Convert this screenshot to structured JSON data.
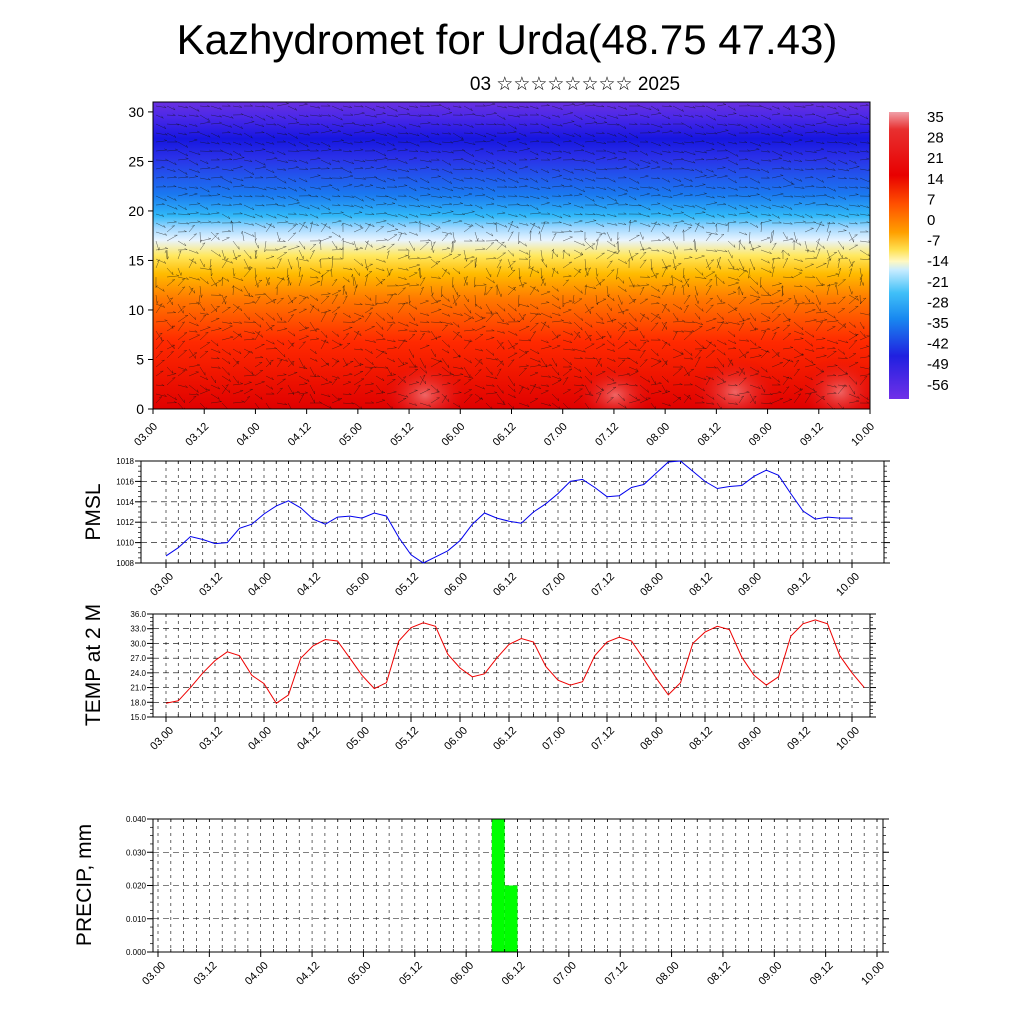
{
  "title": "Kazhydromet for Urda(48.75 47.43)",
  "subtitle": "03 ☆☆☆☆☆☆☆☆ 2025",
  "chart_data": [
    {
      "type": "heatmap",
      "title": "",
      "x_ticks": [
        "03.00",
        "03.12",
        "04.00",
        "04.12",
        "05.00",
        "05.12",
        "06.00",
        "06.12",
        "07.00",
        "07.12",
        "08.00",
        "08.12",
        "09.00",
        "09.12",
        "10.00"
      ],
      "y_ticks": [
        0,
        5,
        10,
        15,
        20,
        25,
        30
      ],
      "ylim": [
        0,
        31
      ],
      "colorbar_labels": [
        "35",
        "28",
        "21",
        "14",
        "7",
        "0",
        "-7",
        "-14",
        "-21",
        "-28",
        "-35",
        "-42",
        "-49",
        "-56"
      ],
      "colorbar_range": [
        -60,
        40
      ],
      "overlay": "wind vectors"
    },
    {
      "type": "line",
      "ylabel": "PMSL",
      "color": "#0000ee",
      "x_ticks": [
        "03.00",
        "03.12",
        "04.00",
        "04.12",
        "05.00",
        "05.12",
        "06.00",
        "06.12",
        "07.00",
        "07.12",
        "08.00",
        "08.12",
        "09.00",
        "09.12",
        "10.00"
      ],
      "y_ticks": [
        "1008",
        "1010",
        "1012",
        "1014",
        "1016",
        "1018"
      ],
      "ylim": [
        1008,
        1018
      ],
      "x_step_hours": 3,
      "values": [
        1008.7,
        1009.5,
        1010.6,
        1010.3,
        1009.9,
        1010.0,
        1011.4,
        1011.8,
        1012.8,
        1013.6,
        1014.1,
        1013.4,
        1012.3,
        1011.8,
        1012.5,
        1012.6,
        1012.4,
        1012.9,
        1012.6,
        1010.5,
        1008.8,
        1008.0,
        1008.6,
        1009.2,
        1010.2,
        1011.8,
        1012.9,
        1012.4,
        1012.1,
        1011.9,
        1013.0,
        1013.8,
        1014.8,
        1016.0,
        1016.2,
        1015.4,
        1014.5,
        1014.6,
        1015.4,
        1015.7,
        1016.8,
        1017.9,
        1018.0,
        1017.0,
        1016.0,
        1015.3,
        1015.5,
        1015.6,
        1016.5,
        1017.1,
        1016.6,
        1014.8,
        1013.1,
        1012.3,
        1012.5,
        1012.4,
        1012.4
      ]
    },
    {
      "type": "line",
      "ylabel": "TEMP at 2 M",
      "color": "#ee0000",
      "x_ticks": [
        "03.00",
        "03.12",
        "04.00",
        "04.12",
        "05.00",
        "05.12",
        "06.00",
        "06.12",
        "07.00",
        "07.12",
        "08.00",
        "08.12",
        "09.00",
        "09.12",
        "10.00"
      ],
      "y_ticks": [
        "15.0",
        "18.0",
        "21.0",
        "24.0",
        "27.0",
        "30.0",
        "33.0",
        "36.0"
      ],
      "ylim": [
        15,
        36
      ],
      "x_step_hours": 3,
      "values": [
        17.8,
        18.3,
        21.0,
        24.0,
        26.5,
        28.3,
        27.5,
        23.5,
        21.8,
        17.8,
        19.5,
        27.0,
        29.5,
        30.8,
        30.5,
        27.0,
        23.5,
        20.8,
        22.0,
        30.5,
        33.2,
        34.2,
        33.5,
        27.8,
        25.0,
        23.2,
        23.8,
        27.0,
        29.8,
        31.0,
        30.3,
        25.3,
        22.5,
        21.5,
        22.2,
        27.5,
        30.3,
        31.3,
        30.5,
        26.8,
        23.0,
        19.5,
        22.0,
        30.0,
        32.3,
        33.5,
        32.8,
        27.2,
        23.5,
        21.5,
        23.2,
        31.5,
        34.0,
        34.8,
        34.0,
        27.5,
        24.0,
        21.0
      ]
    },
    {
      "type": "bar",
      "ylabel": "PRECIP, mm",
      "color": "#00ff00",
      "x_ticks": [
        "03.00",
        "03.12",
        "04.00",
        "04.12",
        "05.00",
        "05.12",
        "06.00",
        "06.12",
        "07.00",
        "07.12",
        "08.00",
        "08.12",
        "09.00",
        "09.12",
        "10.00"
      ],
      "y_ticks": [
        "0.000",
        "0.010",
        "0.020",
        "0.030",
        "0.040"
      ],
      "ylim": [
        0,
        0.04
      ],
      "bars": [
        {
          "start_hours": 78,
          "end_hours": 81,
          "value": 0.04
        },
        {
          "start_hours": 81,
          "end_hours": 84,
          "value": 0.02
        }
      ]
    }
  ]
}
